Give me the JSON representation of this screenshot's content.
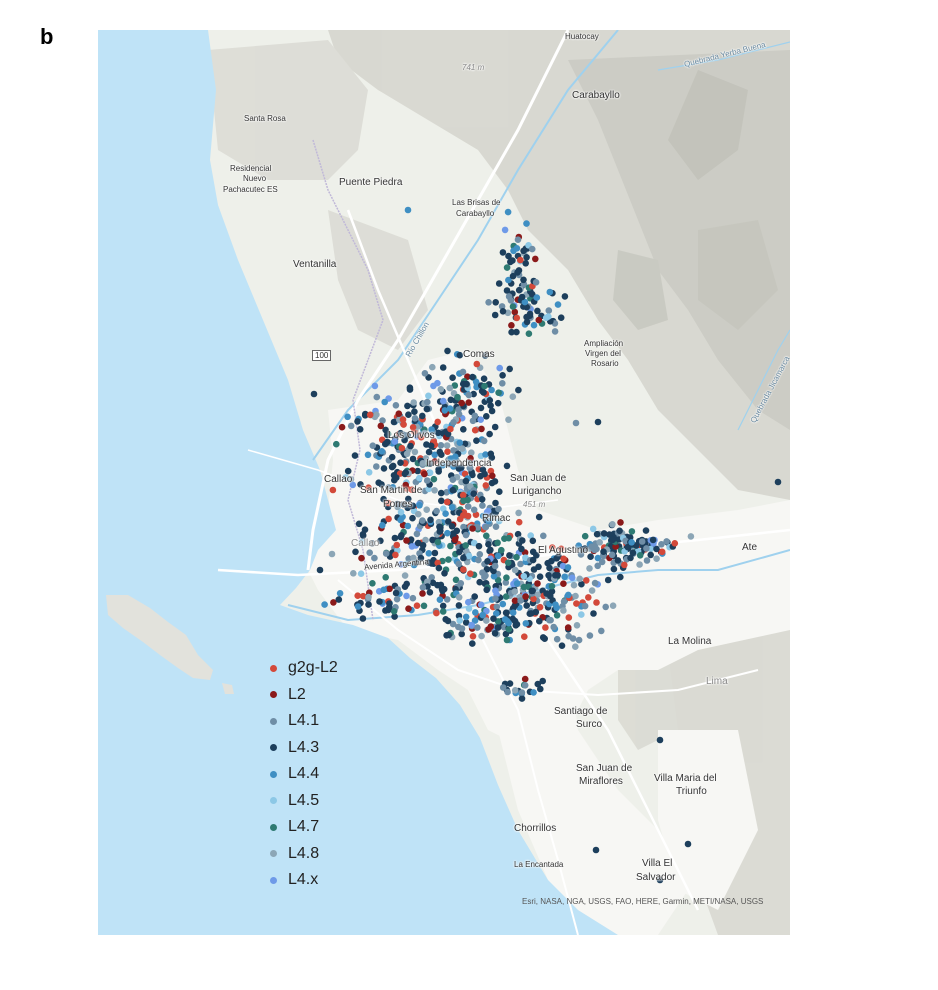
{
  "panel_label": "b",
  "legend": [
    {
      "label": "g2g-L2",
      "color": "#d3493a"
    },
    {
      "label": "L2",
      "color": "#8b1a1a"
    },
    {
      "label": "L4.1",
      "color": "#6f8ea6"
    },
    {
      "label": "L4.3",
      "color": "#1d3f5c"
    },
    {
      "label": "L4.4",
      "color": "#3f8fc3"
    },
    {
      "label": "L4.5",
      "color": "#8cc8e6"
    },
    {
      "label": "L4.7",
      "color": "#2e7a72"
    },
    {
      "label": "L4.8",
      "color": "#8ca6b6"
    },
    {
      "label": "L4.x",
      "color": "#6e9ae8"
    }
  ],
  "places": {
    "huatocay": "Huatocay",
    "quebrada_yerba": "Quebrada Yerba Buena",
    "carabayllo": "Carabayllo",
    "peak_741": "741 m",
    "santa_rosa": "Santa Rosa",
    "residencial_1": "Residencial",
    "residencial_2": "Nuevo",
    "residencial_3": "Pachacutec ES",
    "puente_piedra": "Puente Piedra",
    "brisas_1": "Las Brisas de",
    "brisas_2": "Carabayllo",
    "ventanilla": "Ventanilla",
    "rio_chillon": "Rio Chillon",
    "comas": "Comas",
    "ampliacion_1": "Ampliación",
    "ampliacion_2": "Virgen del",
    "ampliacion_3": "Rosario",
    "quebrada_jicamarca": "Quebrada Jicamarca",
    "los_olivos": "Los Olivos",
    "independencia": "Independencia",
    "callao": "Callao",
    "san_martin": "San Martin de",
    "porres": "Porres",
    "sjl_1": "San Juan de",
    "sjl_2": "Lurigancho",
    "peak_451": "451 m",
    "rimac": "Rimac",
    "callao_grey": "Callao",
    "el_agustino": "El Agustino",
    "ate": "Ate",
    "avenida_argentina": "Avenida Argentina",
    "la_molina": "La Molina",
    "lima_grey": "Lima",
    "santiago_1": "Santiago de",
    "santiago_2": "Surco",
    "sjm_1": "San Juan de",
    "sjm_2": "Miraflores",
    "vmt_1": "Villa Maria del",
    "vmt_2": "Triunfo",
    "chorrillos": "Chorrillos",
    "la_encantada": "La Encantada",
    "villa_el_1": "Villa El",
    "villa_el_2": "Salvador",
    "route_100": "100"
  },
  "attribution": "Esri, NASA, NGA, USGS, FAO, HERE, Garmin, METI/NASA, USGS",
  "colors": {
    "sea": "#bfe3f7",
    "land": "#eef0ea",
    "urban": "#f6f6f3",
    "mountain_shade": "#cfcfc8",
    "road": "#ffffff"
  }
}
